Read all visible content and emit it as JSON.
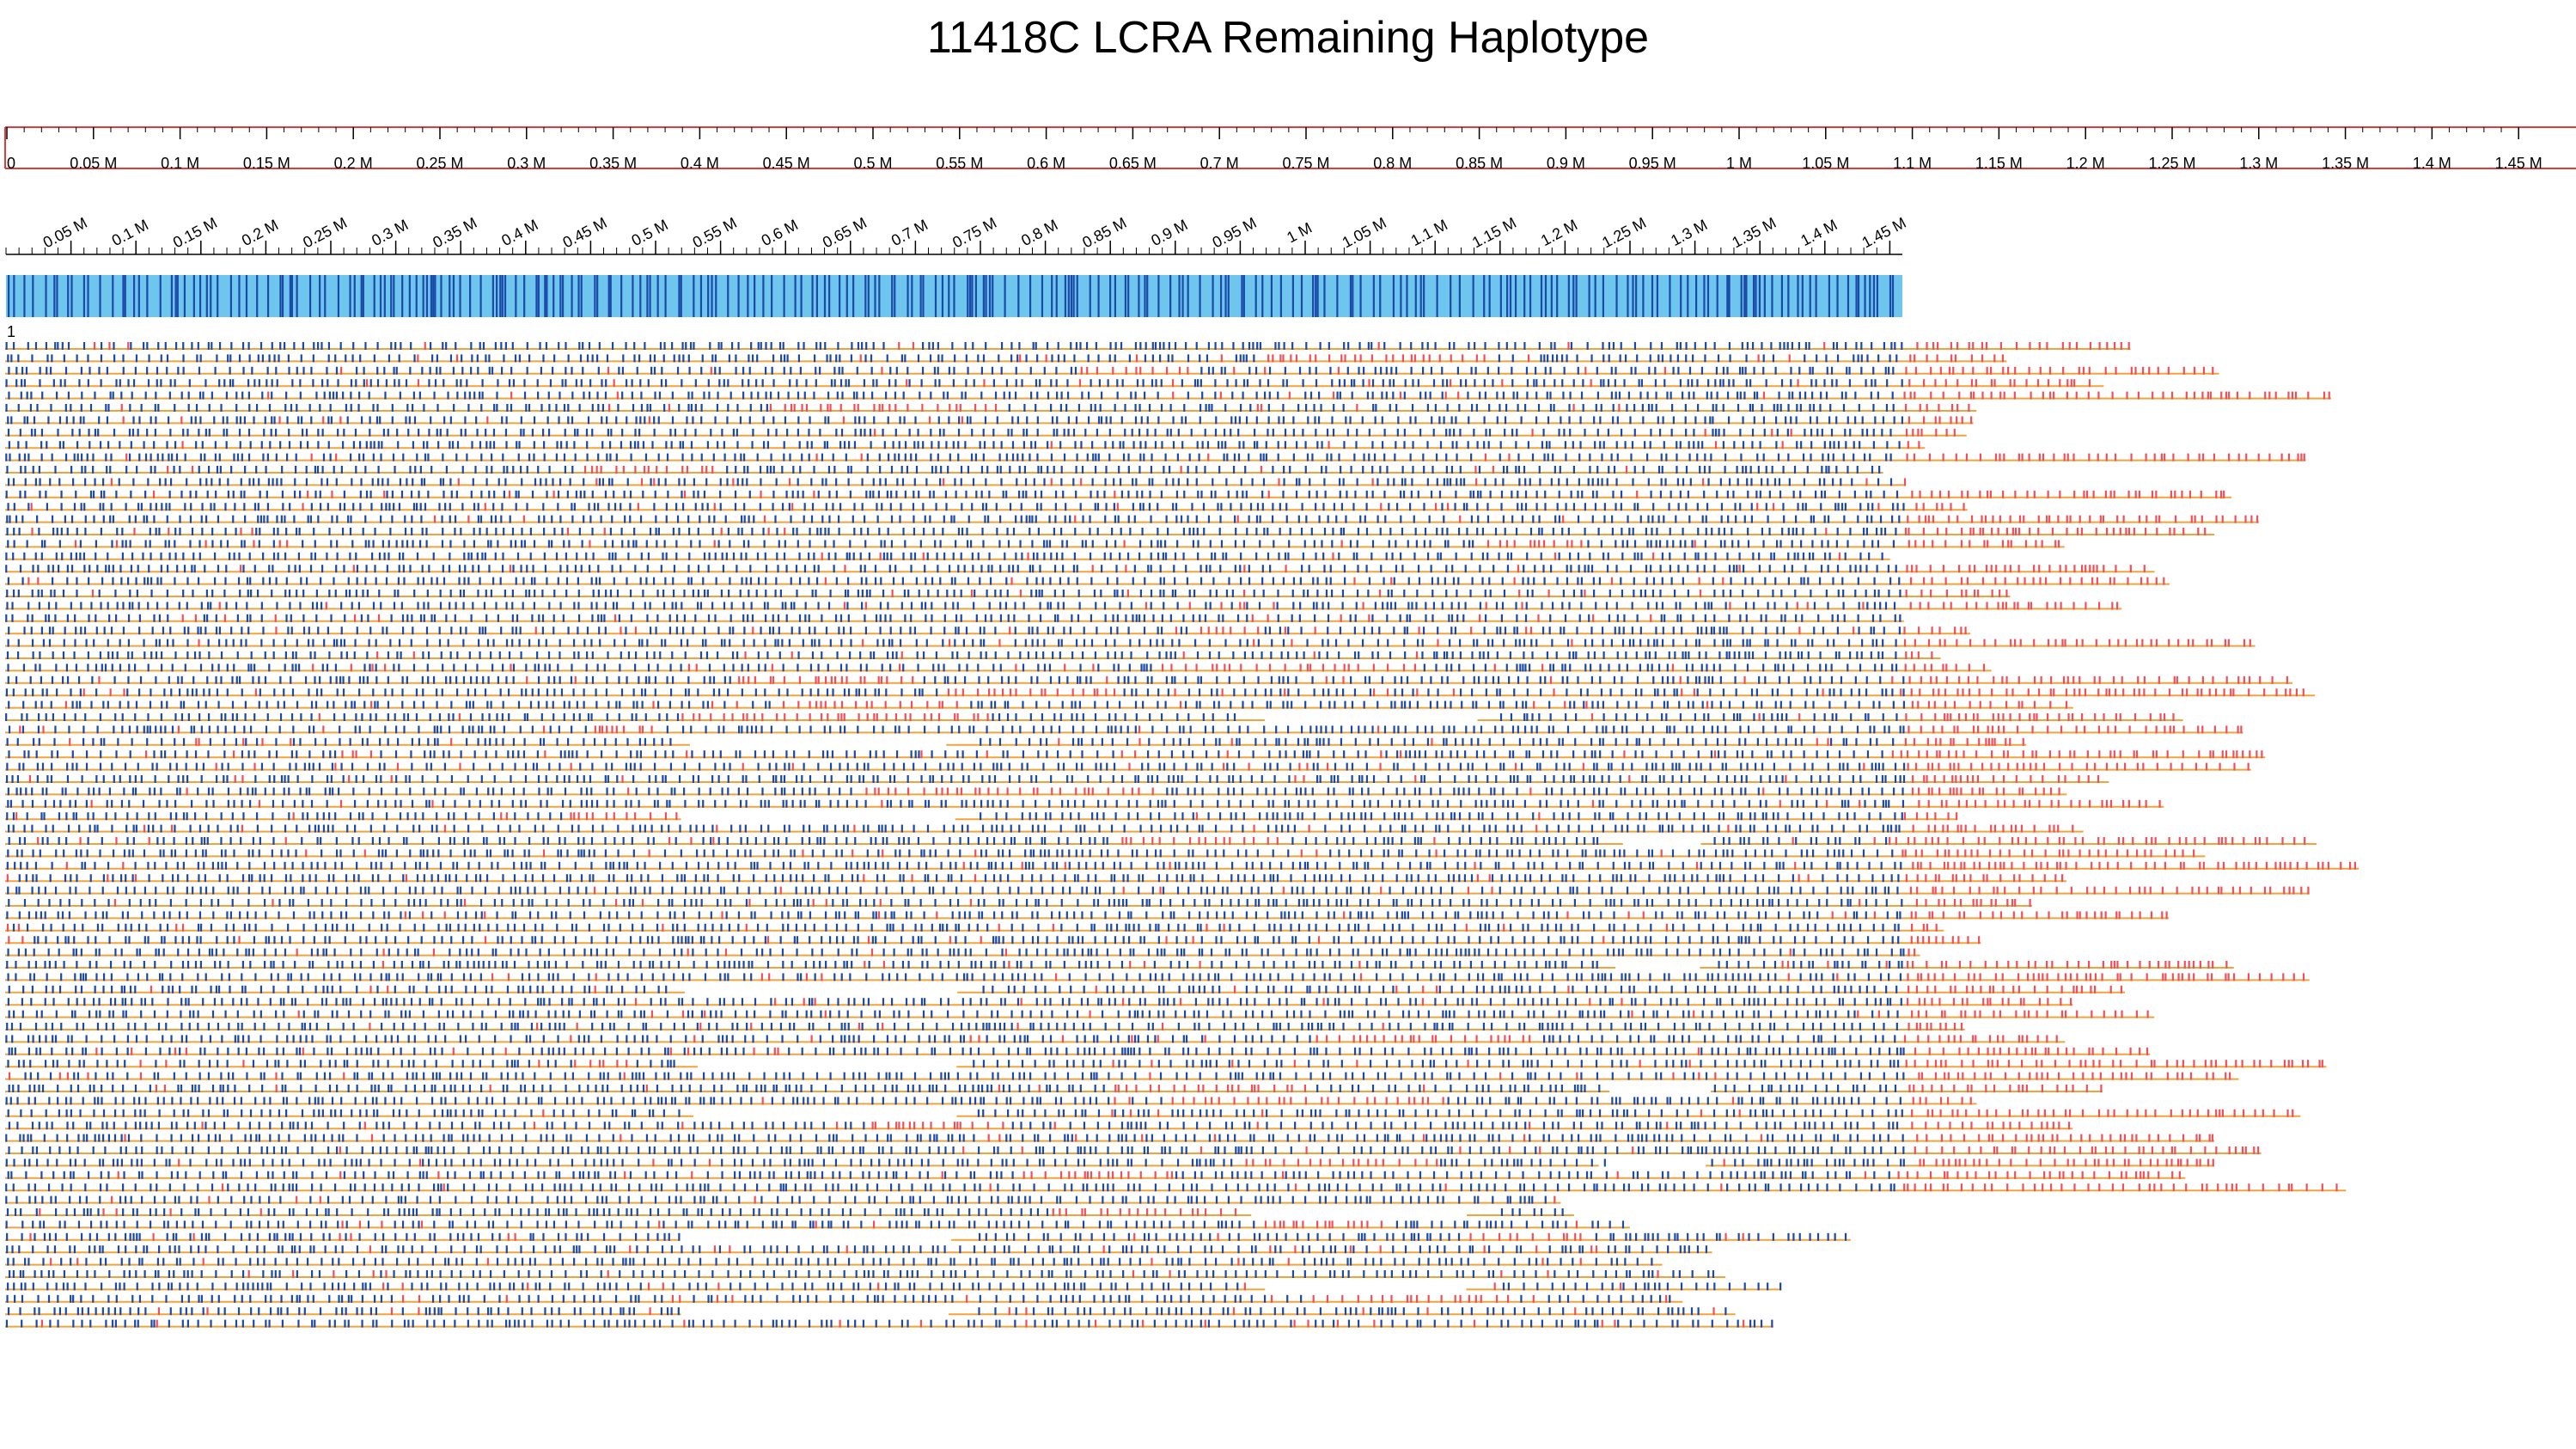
{
  "title": "11418C LCRA Remaining Haplotype",
  "top_axis": {
    "labels": [
      "0",
      "0.05 M",
      "0.1 M",
      "0.15 M",
      "0.2 M",
      "0.25 M",
      "0.3 M",
      "0.35 M",
      "0.4 M",
      "0.45 M",
      "0.5 M",
      "0.55 M",
      "0.6 M",
      "0.65 M",
      "0.7 M",
      "0.75 M",
      "0.8 M",
      "0.85 M",
      "0.9 M",
      "0.95 M",
      "1 M",
      "1.05 M",
      "1.1 M",
      "1.15 M",
      "1.2 M",
      "1.25 M",
      "1.3 M",
      "1.35 M",
      "1.4 M",
      "1.45 M"
    ],
    "color": "#e03c3c"
  },
  "reference_axis": {
    "labels": [
      "0.05 M",
      "0.1 M",
      "0.15 M",
      "0.2 M",
      "0.25 M",
      "0.3 M",
      "0.35 M",
      "0.4 M",
      "0.45 M",
      "0.5 M",
      "0.55 M",
      "0.6 M",
      "0.65 M",
      "0.7 M",
      "0.75 M",
      "0.8 M",
      "0.85 M",
      "0.9 M",
      "0.95 M",
      "1 M",
      "1.05 M",
      "1.1 M",
      "1.15 M",
      "1.2 M",
      "1.25 M",
      "1.3 M",
      "1.35 M",
      "1.4 M",
      "1.45 M"
    ]
  },
  "reference_bar": {
    "fill_color": "#6ec6ee",
    "label_color": "#1b4aa8"
  },
  "molecules": {
    "first_label": "1",
    "count": 80,
    "line_color": "#f2a33a",
    "aligned_label_color": "#1b4aa8",
    "unaligned_label_color": "#f0505a"
  }
}
